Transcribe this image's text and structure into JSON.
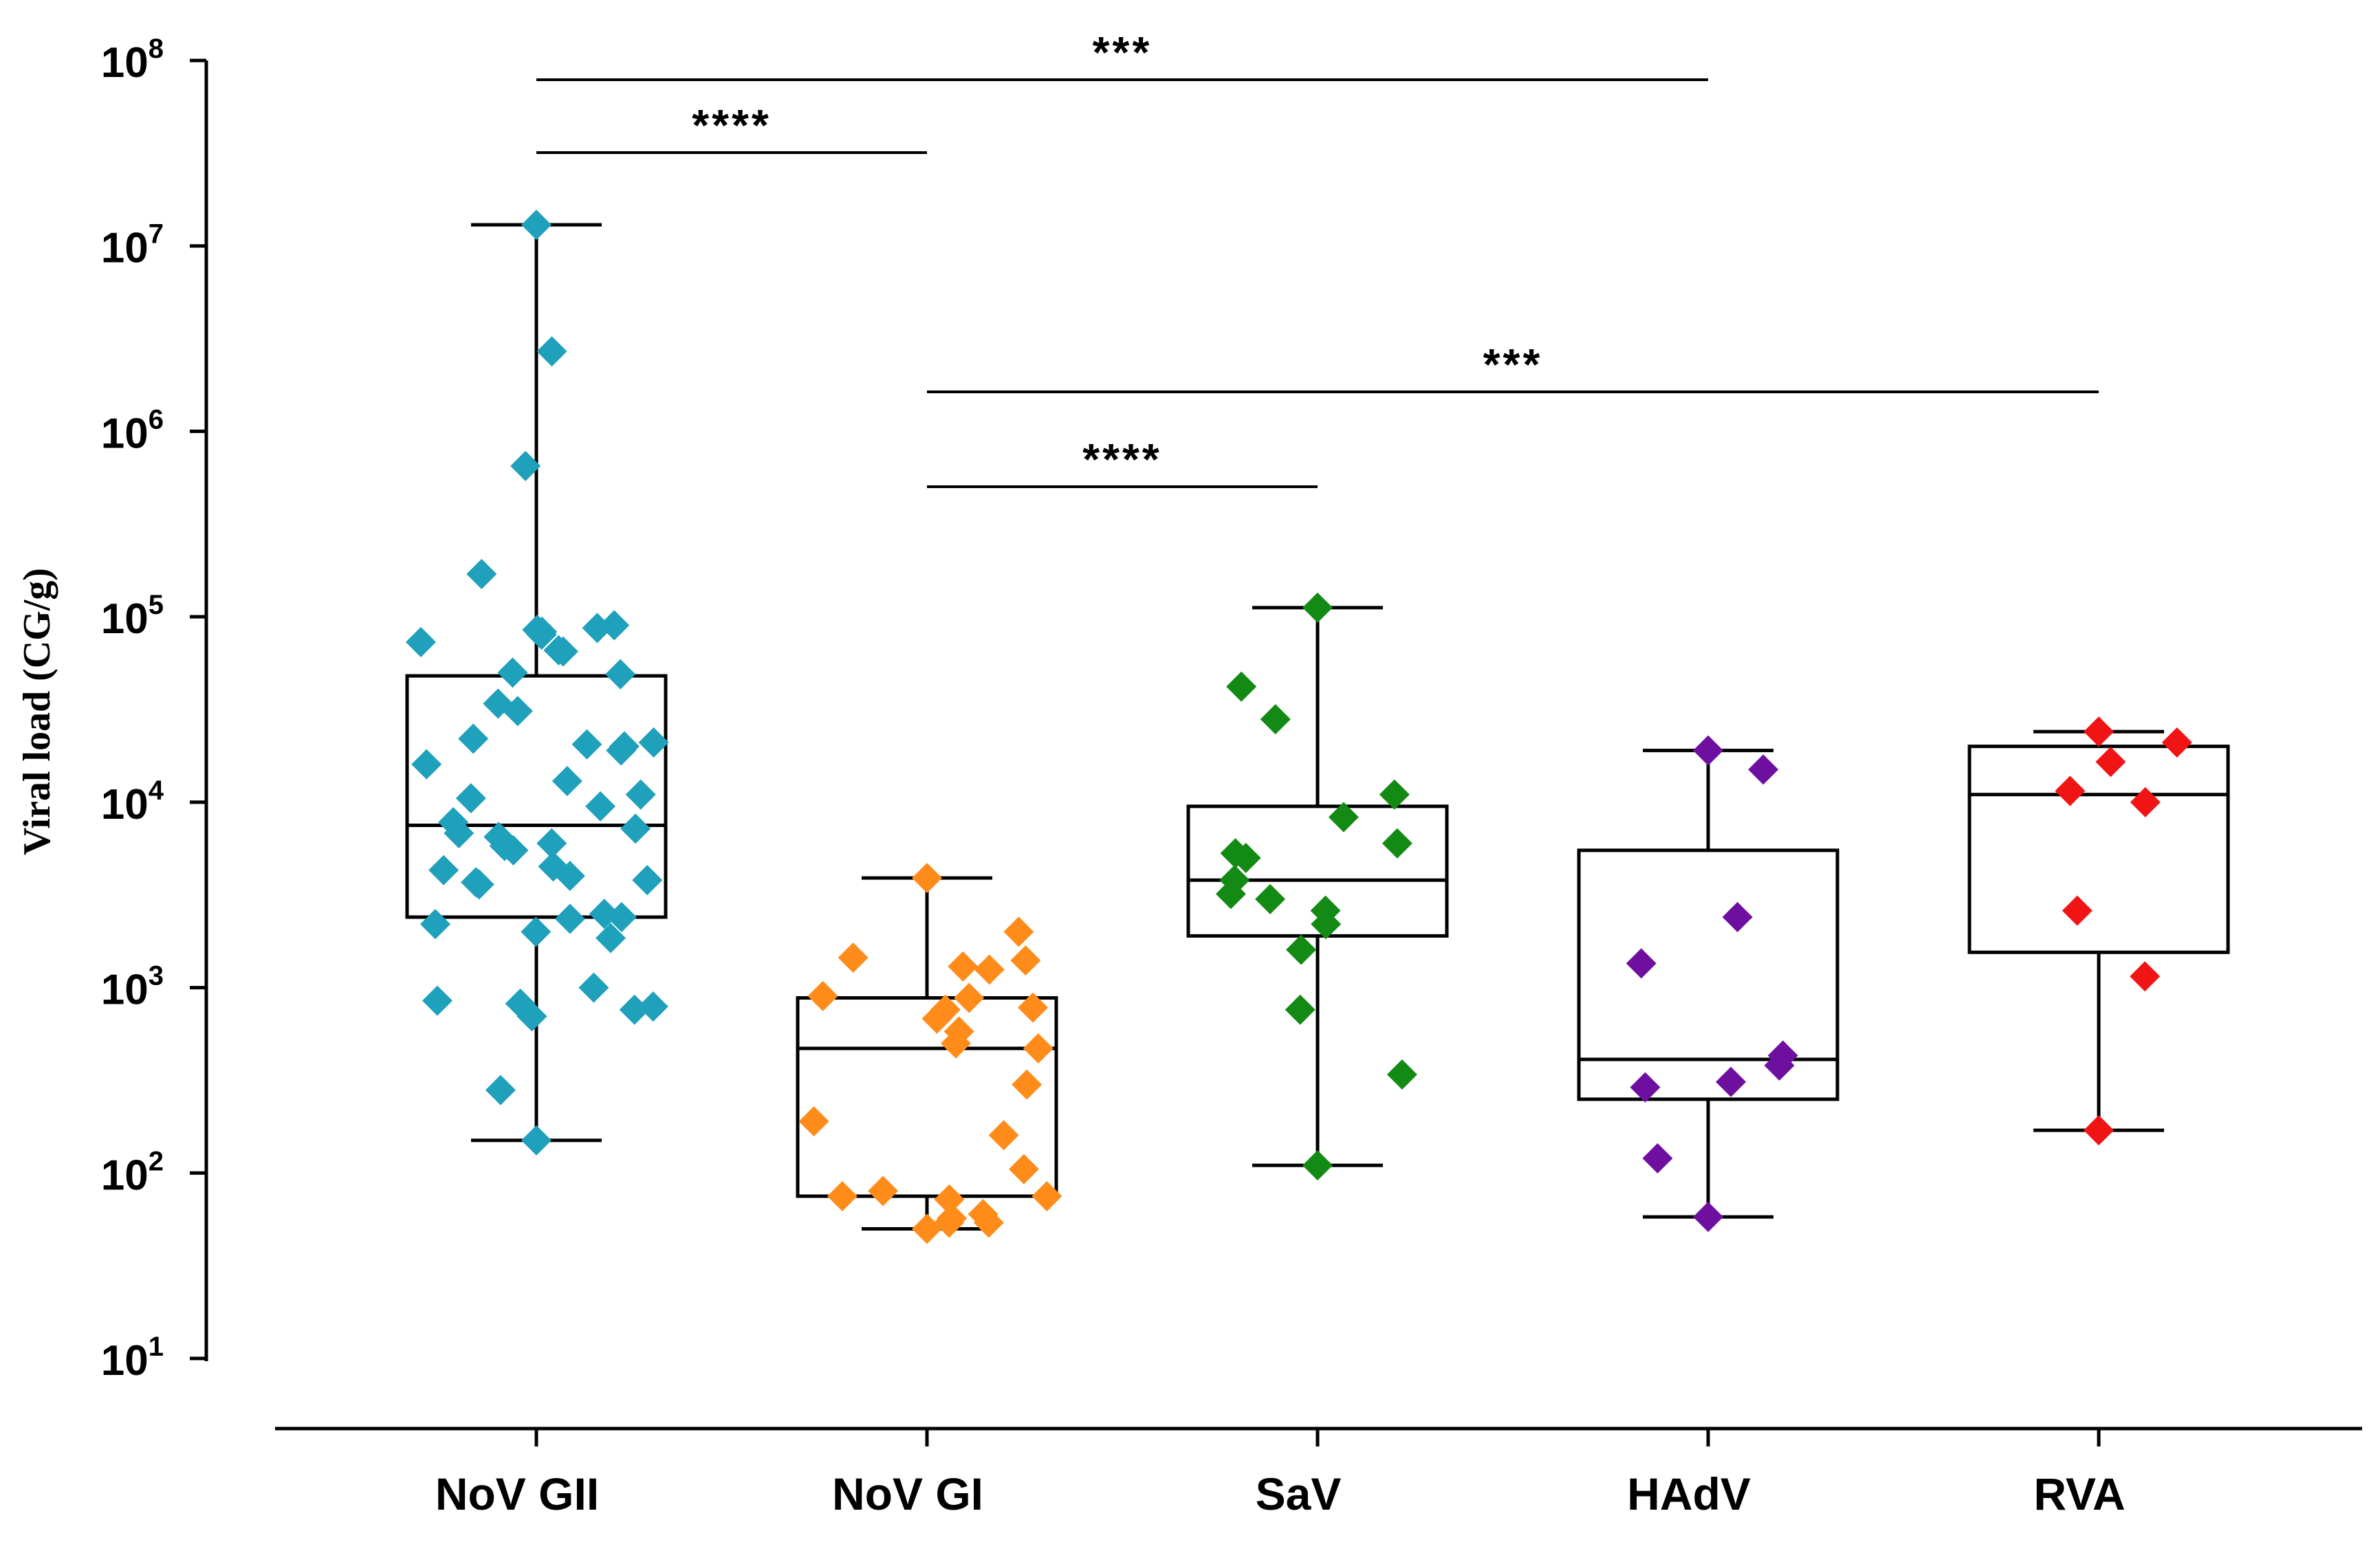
{
  "chart_data": {
    "type": "box",
    "title": "",
    "xlabel": "",
    "ylabel": "Viral load (CG/g)",
    "yscale": "log10",
    "ylim": [
      10,
      100000000
    ],
    "yticks": [
      {
        "base": "10",
        "exp": "1"
      },
      {
        "base": "10",
        "exp": "2"
      },
      {
        "base": "10",
        "exp": "3"
      },
      {
        "base": "10",
        "exp": "4"
      },
      {
        "base": "10",
        "exp": "5"
      },
      {
        "base": "10",
        "exp": "6"
      },
      {
        "base": "10",
        "exp": "7"
      },
      {
        "base": "10",
        "exp": "8"
      }
    ],
    "categories": [
      "NoV GII",
      "NoV GI",
      "SaV",
      "HAdV",
      "RVA"
    ],
    "groups": [
      {
        "name": "NoV GII",
        "color": "#1fa0bb",
        "box": {
          "min": 150,
          "q1": 2400,
          "median": 7500,
          "q3": 48000,
          "max": 13000000
        },
        "points": [
          13000000,
          2700000,
          650000,
          170000,
          90000,
          87000,
          85000,
          83000,
          80000,
          73000,
          66000,
          65000,
          50000,
          49000,
          34000,
          31000,
          22000,
          21000,
          20500,
          20000,
          19000,
          16000,
          13000,
          11000,
          10500,
          9500,
          7800,
          7200,
          6800,
          6500,
          6000,
          5800,
          5500,
          4500,
          4300,
          4000,
          3800,
          3700,
          3600,
          2500,
          2400,
          2350,
          2200,
          2000,
          1850,
          1000,
          850,
          820,
          790,
          760,
          700,
          280,
          150
        ]
      },
      {
        "name": "NoV GI",
        "color": "#ff8c1a",
        "box": {
          "min": 50,
          "q1": 75,
          "median": 470,
          "q3": 880,
          "max": 3900
        },
        "points": [
          3900,
          2000,
          1450,
          1400,
          1300,
          1250,
          900,
          880,
          780,
          760,
          680,
          580,
          500,
          470,
          300,
          190,
          160,
          105,
          80,
          75,
          75,
          72,
          60,
          57,
          54,
          54,
          50
        ]
      },
      {
        "name": "SaV",
        "color": "#138a13",
        "box": {
          "min": 110,
          "q1": 1900,
          "median": 3800,
          "q3": 9500,
          "max": 112000
        },
        "points": [
          112000,
          42000,
          28000,
          11000,
          8300,
          6000,
          5300,
          5000,
          3800,
          3200,
          3000,
          2600,
          2200,
          1600,
          760,
          340,
          110
        ]
      },
      {
        "name": "HAdV",
        "color": "#6f0fa0",
        "box": {
          "min": 58,
          "q1": 250,
          "median": 410,
          "q3": 5500,
          "max": 19000
        },
        "points": [
          19000,
          15000,
          2400,
          1350,
          430,
          380,
          310,
          290,
          120,
          58
        ]
      },
      {
        "name": "RVA",
        "color": "#f01414",
        "box": {
          "min": 170,
          "q1": 1550,
          "median": 11000,
          "q3": 20000,
          "max": 24000
        },
        "points": [
          24000,
          21000,
          16500,
          11500,
          10000,
          2600,
          1150,
          170
        ]
      }
    ],
    "comparisons": [
      {
        "from": "NoV GII",
        "to": "HAdV",
        "label": "***"
      },
      {
        "from": "NoV GII",
        "to": "NoV GI",
        "label": "****"
      },
      {
        "from": "NoV GI",
        "to": "RVA",
        "label": "***"
      },
      {
        "from": "NoV GI",
        "to": "SaV",
        "label": "****"
      }
    ]
  }
}
